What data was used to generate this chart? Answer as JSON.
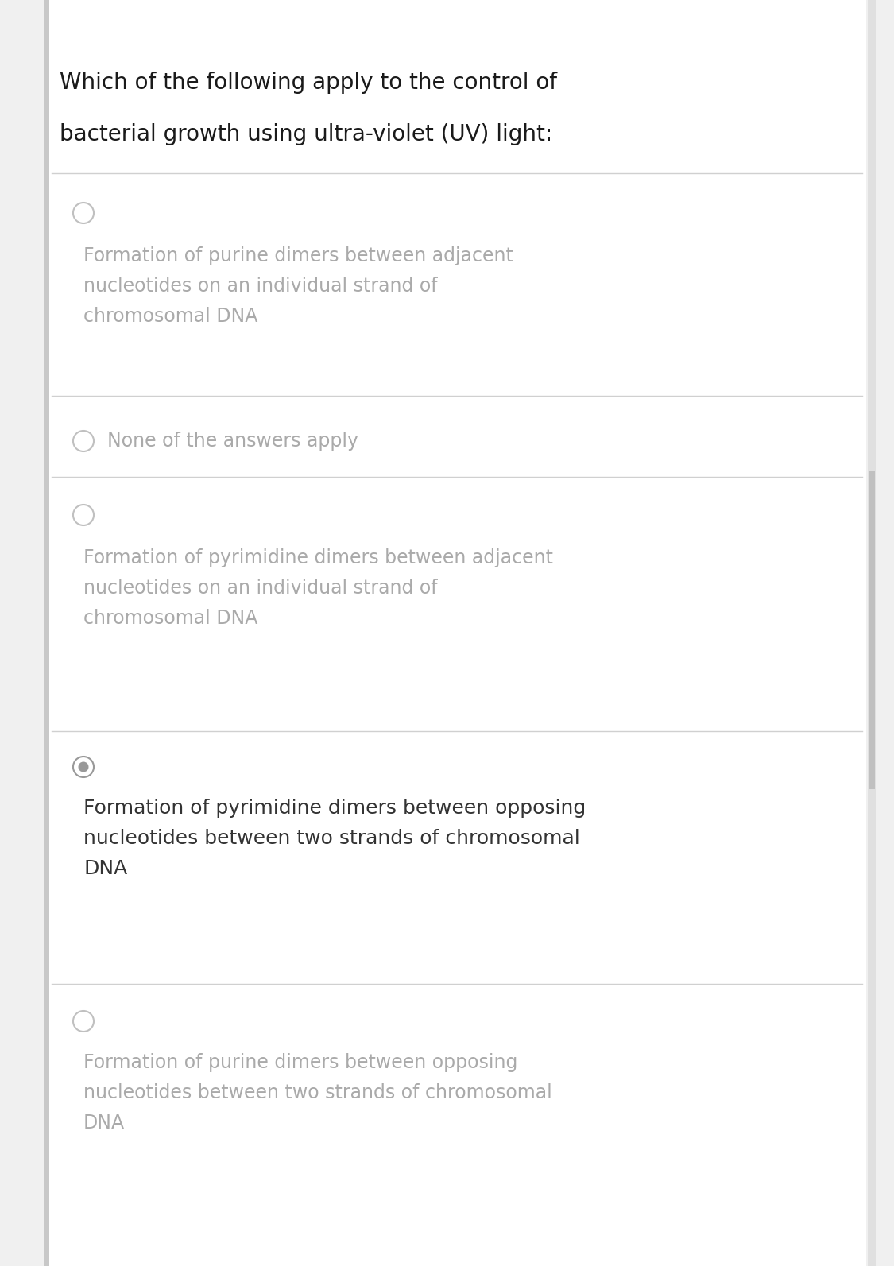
{
  "background_color": "#f0f0f0",
  "content_bg": "#ffffff",
  "left_bar_color": "#c8c8c8",
  "divider_color": "#d0d0d0",
  "title_text_line1": "Which of the following apply to the control of",
  "title_text_line2": "bacterial growth using ultra-violet (UV) light:",
  "title_color": "#1a1a1a",
  "title_fontsize": 20,
  "options": [
    {
      "lines": [
        "Formation of purine dimers between adjacent",
        "nucleotides on an individual strand of",
        "chromosomal DNA"
      ],
      "text_color": "#aaaaaa",
      "radio_filled": false,
      "bold": false,
      "inline_radio": false
    },
    {
      "lines": [
        "None of the answers apply"
      ],
      "text_color": "#aaaaaa",
      "radio_filled": false,
      "bold": false,
      "inline_radio": true
    },
    {
      "lines": [
        "Formation of pyrimidine dimers between adjacent",
        "nucleotides on an individual strand of",
        "chromosomal DNA"
      ],
      "text_color": "#aaaaaa",
      "radio_filled": false,
      "bold": false,
      "inline_radio": false
    },
    {
      "lines": [
        "Formation of pyrimidine dimers between opposing",
        "nucleotides between two strands of chromosomal",
        "DNA"
      ],
      "text_color": "#333333",
      "radio_filled": true,
      "bold": false,
      "inline_radio": false
    },
    {
      "lines": [
        "Formation of purine dimers between opposing",
        "nucleotides between two strands of chromosomal",
        "DNA"
      ],
      "text_color": "#aaaaaa",
      "radio_filled": false,
      "bold": false,
      "inline_radio": false
    }
  ],
  "radio_color_empty": "#c0c0c0",
  "radio_color_filled_outer": "#999999",
  "radio_color_filled_inner": "#999999",
  "option_fontsize": 17,
  "scrollbar_color": "#c0c0c0"
}
